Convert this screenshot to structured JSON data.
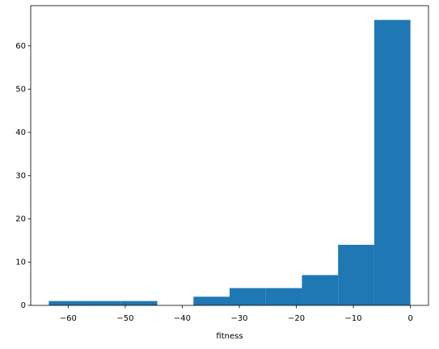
{
  "chart_data": {
    "type": "histogram",
    "x_label": "fitness",
    "bins": [
      -63.4,
      -57.06,
      -50.72,
      -44.38,
      -38.04,
      -31.7,
      -25.36,
      -19.02,
      -12.68,
      -6.34,
      0
    ],
    "values": [
      1,
      1,
      1,
      0,
      2,
      4,
      4,
      7,
      14,
      66
    ],
    "color": "#1f77b4",
    "xlim": [
      -66.57,
      3.17
    ],
    "ylim": [
      0,
      69.3
    ],
    "xticks": [
      {
        "value": -60,
        "label": "−60"
      },
      {
        "value": -50,
        "label": "−50"
      },
      {
        "value": -40,
        "label": "−40"
      },
      {
        "value": -30,
        "label": "−30"
      },
      {
        "value": -20,
        "label": "−20"
      },
      {
        "value": -10,
        "label": "−10"
      },
      0
    ],
    "yticks": [
      0,
      10,
      20,
      30,
      40,
      50,
      60
    ],
    "grid": false
  }
}
